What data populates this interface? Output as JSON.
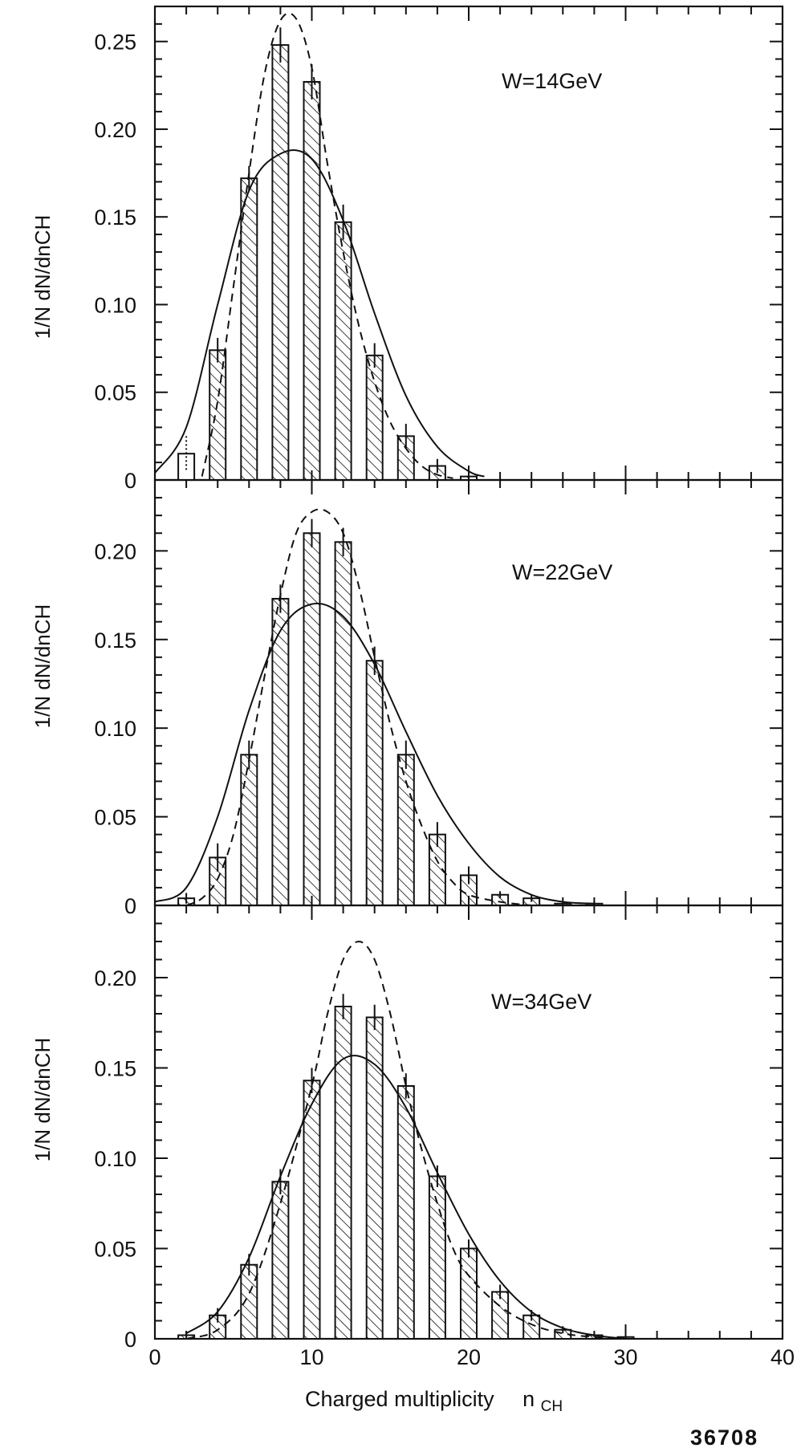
{
  "chart_data": [
    {
      "type": "bar",
      "annotation": "W=14GeV",
      "ylabel": "1/N dN/dnCH",
      "xlim": [
        0,
        40
      ],
      "ylim": [
        0,
        0.27
      ],
      "yticks": [
        "0",
        "0.05",
        "0.10",
        "0.15",
        "0.20",
        "0.25"
      ],
      "ytick_values": [
        0,
        0.05,
        0.1,
        0.15,
        0.2,
        0.25
      ],
      "bars": [
        {
          "x": 2,
          "y": 0.015,
          "err": 0.01,
          "hatched": false,
          "err_style": "dotted"
        },
        {
          "x": 4,
          "y": 0.074,
          "err": 0.007,
          "hatched": true
        },
        {
          "x": 6,
          "y": 0.172,
          "err": 0.007,
          "hatched": true
        },
        {
          "x": 8,
          "y": 0.248,
          "err": 0.01,
          "hatched": true
        },
        {
          "x": 10,
          "y": 0.227,
          "err": 0.01,
          "hatched": true
        },
        {
          "x": 12,
          "y": 0.147,
          "err": 0.01,
          "hatched": true
        },
        {
          "x": 14,
          "y": 0.071,
          "err": 0.007,
          "hatched": true
        },
        {
          "x": 16,
          "y": 0.025,
          "err": 0.007,
          "hatched": true
        },
        {
          "x": 18,
          "y": 0.008,
          "err": 0.004,
          "hatched": true
        },
        {
          "x": 20,
          "y": 0.002,
          "err": 0.002,
          "hatched": true
        }
      ],
      "curves": [
        {
          "style": "solid",
          "points": [
            [
              0,
              0.004
            ],
            [
              2,
              0.03
            ],
            [
              4,
              0.1
            ],
            [
              6,
              0.165
            ],
            [
              8,
              0.186
            ],
            [
              10,
              0.183
            ],
            [
              12,
              0.148
            ],
            [
              14,
              0.095
            ],
            [
              16,
              0.048
            ],
            [
              18,
              0.019
            ],
            [
              20,
              0.005
            ],
            [
              21,
              0.002
            ]
          ]
        },
        {
          "style": "dashed",
          "points": [
            [
              3,
              0.002
            ],
            [
              4,
              0.045
            ],
            [
              5,
              0.11
            ],
            [
              6,
              0.175
            ],
            [
              7,
              0.232
            ],
            [
              8,
              0.262
            ],
            [
              9,
              0.263
            ],
            [
              10,
              0.235
            ],
            [
              11,
              0.18
            ],
            [
              12,
              0.13
            ],
            [
              13,
              0.088
            ],
            [
              14,
              0.056
            ],
            [
              15,
              0.033
            ],
            [
              16,
              0.018
            ],
            [
              17,
              0.008
            ],
            [
              18,
              0.003
            ],
            [
              19,
              0.001
            ]
          ]
        }
      ]
    },
    {
      "type": "bar",
      "annotation": "W=22GeV",
      "ylabel": "1/N dN/dnCH",
      "xlim": [
        0,
        40
      ],
      "ylim": [
        0,
        0.24
      ],
      "yticks": [
        "0",
        "0.05",
        "0.10",
        "0.15",
        "0.20"
      ],
      "ytick_values": [
        0,
        0.05,
        0.1,
        0.15,
        0.2
      ],
      "bars": [
        {
          "x": 2,
          "y": 0.004,
          "err": 0.003,
          "hatched": true
        },
        {
          "x": 4,
          "y": 0.027,
          "err": 0.008,
          "hatched": true
        },
        {
          "x": 6,
          "y": 0.085,
          "err": 0.008,
          "hatched": true
        },
        {
          "x": 8,
          "y": 0.173,
          "err": 0.008,
          "hatched": true
        },
        {
          "x": 10,
          "y": 0.21,
          "err": 0.008,
          "hatched": true
        },
        {
          "x": 12,
          "y": 0.205,
          "err": 0.008,
          "hatched": true
        },
        {
          "x": 14,
          "y": 0.138,
          "err": 0.008,
          "hatched": true
        },
        {
          "x": 16,
          "y": 0.085,
          "err": 0.008,
          "hatched": true
        },
        {
          "x": 18,
          "y": 0.04,
          "err": 0.007,
          "hatched": true
        },
        {
          "x": 20,
          "y": 0.017,
          "err": 0.005,
          "hatched": true
        },
        {
          "x": 22,
          "y": 0.006,
          "err": 0.002,
          "hatched": true
        },
        {
          "x": 24,
          "y": 0.004,
          "err": 0.002,
          "hatched": true
        },
        {
          "x": 26,
          "y": 0.001,
          "err": 0.001,
          "hatched": true
        },
        {
          "x": 28,
          "y": 0.001,
          "err": 0.001,
          "hatched": true
        }
      ],
      "curves": [
        {
          "style": "solid",
          "points": [
            [
              0,
              0.002
            ],
            [
              2,
              0.01
            ],
            [
              4,
              0.05
            ],
            [
              6,
              0.11
            ],
            [
              8,
              0.155
            ],
            [
              10,
              0.17
            ],
            [
              12,
              0.163
            ],
            [
              14,
              0.136
            ],
            [
              16,
              0.098
            ],
            [
              18,
              0.062
            ],
            [
              20,
              0.035
            ],
            [
              22,
              0.016
            ],
            [
              24,
              0.006
            ],
            [
              26,
              0.002
            ],
            [
              28,
              0.001
            ]
          ]
        },
        {
          "style": "dashed",
          "points": [
            [
              2,
              0.0
            ],
            [
              3,
              0.004
            ],
            [
              4,
              0.015
            ],
            [
              5,
              0.04
            ],
            [
              6,
              0.082
            ],
            [
              7,
              0.13
            ],
            [
              8,
              0.175
            ],
            [
              9,
              0.21
            ],
            [
              10,
              0.222
            ],
            [
              11,
              0.222
            ],
            [
              12,
              0.21
            ],
            [
              13,
              0.18
            ],
            [
              14,
              0.14
            ],
            [
              15,
              0.102
            ],
            [
              16,
              0.07
            ],
            [
              17,
              0.045
            ],
            [
              18,
              0.025
            ],
            [
              19,
              0.013
            ],
            [
              20,
              0.006
            ],
            [
              22,
              0.002
            ],
            [
              24,
              0.0
            ]
          ]
        }
      ]
    },
    {
      "type": "bar",
      "annotation": "W=34GeV",
      "ylabel": "1/N dN/dnCH",
      "xlabel": "Charged multiplicity nCH",
      "xlim": [
        0,
        40
      ],
      "ylim": [
        0,
        0.24
      ],
      "xticks": [
        "0",
        "10",
        "20",
        "30",
        "40"
      ],
      "xtick_values": [
        0,
        10,
        20,
        30,
        40
      ],
      "yticks": [
        "0",
        "0.05",
        "0.10",
        "0.15",
        "0.20"
      ],
      "ytick_values": [
        0,
        0.05,
        0.1,
        0.15,
        0.2
      ],
      "bars": [
        {
          "x": 2,
          "y": 0.002,
          "err": 0.002,
          "hatched": true
        },
        {
          "x": 4,
          "y": 0.013,
          "err": 0.004,
          "hatched": true
        },
        {
          "x": 6,
          "y": 0.041,
          "err": 0.006,
          "hatched": true
        },
        {
          "x": 8,
          "y": 0.087,
          "err": 0.007,
          "hatched": true
        },
        {
          "x": 10,
          "y": 0.143,
          "err": 0.007,
          "hatched": true
        },
        {
          "x": 12,
          "y": 0.184,
          "err": 0.007,
          "hatched": true
        },
        {
          "x": 14,
          "y": 0.178,
          "err": 0.007,
          "hatched": true
        },
        {
          "x": 16,
          "y": 0.14,
          "err": 0.007,
          "hatched": true
        },
        {
          "x": 18,
          "y": 0.09,
          "err": 0.006,
          "hatched": true
        },
        {
          "x": 20,
          "y": 0.05,
          "err": 0.005,
          "hatched": true
        },
        {
          "x": 22,
          "y": 0.026,
          "err": 0.004,
          "hatched": true
        },
        {
          "x": 24,
          "y": 0.013,
          "err": 0.003,
          "hatched": true
        },
        {
          "x": 26,
          "y": 0.005,
          "err": 0.002,
          "hatched": true
        },
        {
          "x": 28,
          "y": 0.002,
          "err": 0.001,
          "hatched": true
        },
        {
          "x": 30,
          "y": 0.001,
          "err": 0.001,
          "hatched": true
        }
      ],
      "curves": [
        {
          "style": "solid",
          "points": [
            [
              2,
              0.003
            ],
            [
              4,
              0.015
            ],
            [
              6,
              0.045
            ],
            [
              8,
              0.09
            ],
            [
              10,
              0.13
            ],
            [
              12,
              0.155
            ],
            [
              14,
              0.152
            ],
            [
              16,
              0.128
            ],
            [
              18,
              0.092
            ],
            [
              20,
              0.058
            ],
            [
              22,
              0.032
            ],
            [
              24,
              0.015
            ],
            [
              26,
              0.006
            ],
            [
              28,
              0.002
            ],
            [
              30,
              0.0
            ]
          ]
        },
        {
          "style": "dashed",
          "points": [
            [
              2,
              0.0
            ],
            [
              4,
              0.005
            ],
            [
              6,
              0.025
            ],
            [
              8,
              0.075
            ],
            [
              10,
              0.14
            ],
            [
              11,
              0.18
            ],
            [
              12,
              0.21
            ],
            [
              13,
              0.22
            ],
            [
              14,
              0.21
            ],
            [
              15,
              0.18
            ],
            [
              16,
              0.14
            ],
            [
              17,
              0.105
            ],
            [
              18,
              0.075
            ],
            [
              19,
              0.05
            ],
            [
              20,
              0.035
            ],
            [
              22,
              0.018
            ],
            [
              24,
              0.008
            ],
            [
              26,
              0.003
            ],
            [
              28,
              0.001
            ],
            [
              30,
              0.0
            ]
          ]
        }
      ]
    }
  ],
  "figure_number": "36708",
  "xlabel_main": "Charged multiplicity",
  "xlabel_symbol": "n",
  "xlabel_sub": "CH"
}
